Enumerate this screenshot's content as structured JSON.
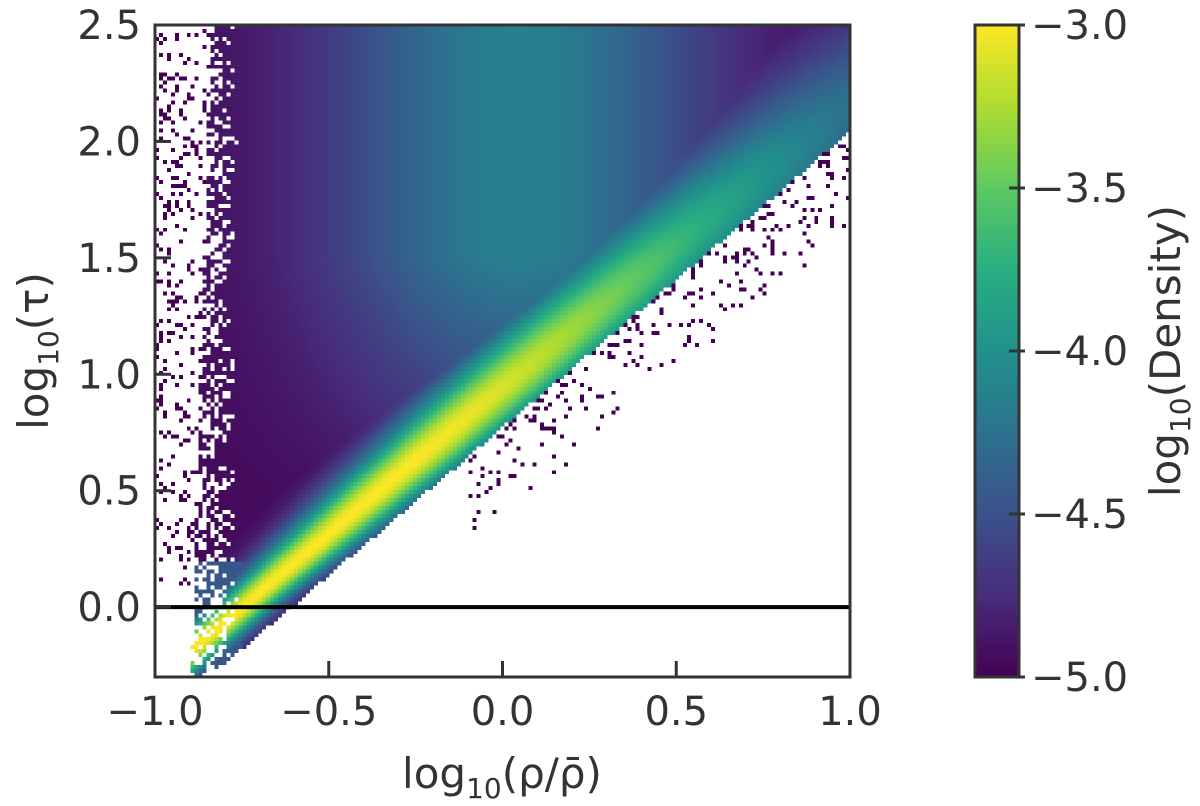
{
  "chart_data": {
    "type": "heatmap",
    "title": "",
    "xlabel": "log10(ρ/ρ̄)",
    "ylabel": "log10(τ)",
    "xlabel_parts": [
      "log",
      "10",
      "(ρ/ρ̄)"
    ],
    "ylabel_parts": [
      "log",
      "10",
      "(τ)"
    ],
    "xlim": [
      -1.0,
      1.0
    ],
    "ylim": [
      -0.3,
      2.5
    ],
    "x_ticks": [
      -1.0,
      -0.5,
      0.0,
      0.5,
      1.0
    ],
    "x_tick_labels": [
      "−1.0",
      "−0.5",
      "0.0",
      "0.5",
      "1.0"
    ],
    "y_ticks": [
      0.0,
      0.5,
      1.0,
      1.5,
      2.0,
      2.5
    ],
    "y_tick_labels": [
      "0.0",
      "0.5",
      "1.0",
      "1.5",
      "2.0",
      "2.5"
    ],
    "colormap": "viridis",
    "grid": false,
    "reference_line": {
      "y": 0.0,
      "color": "#000000"
    },
    "density_ridge": {
      "description": "peak density follows log10(tau) ≈ 1.27*log10(rho/rhobar) + 0.95, lower edge of populated region roughly parallel",
      "slope": 1.27,
      "intercept": 0.95
    },
    "colorbar": {
      "label": "log10(Density)",
      "label_parts": [
        "log",
        "10",
        "(Density)"
      ],
      "range": [
        -5.0,
        -3.0
      ],
      "ticks": [
        -5.0,
        -4.5,
        -4.0,
        -3.5,
        -3.0
      ],
      "tick_labels": [
        "−5.0",
        "−4.5",
        "−4.0",
        "−3.5",
        "−3.0"
      ]
    }
  }
}
